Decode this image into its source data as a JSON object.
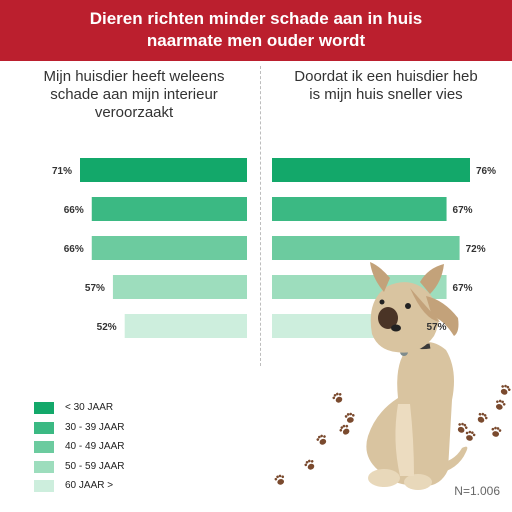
{
  "header": {
    "title_line1": "Dieren richten minder schade aan in huis",
    "title_line2": "naarmate men ouder wordt"
  },
  "chart_data": [
    {
      "type": "bar",
      "title": "Mijn huisdier heeft weleens schade aan mijn interieur veroorzaakt",
      "title_lines": [
        "Mijn huisdier heeft weleens",
        "schade aan mijn interieur",
        "veroorzaakt"
      ],
      "orientation": "horizontal-leftward",
      "categories": [
        "< 30 JAAR",
        "30 - 39 JAAR",
        "40 - 49 JAAR",
        "50 - 59 JAAR",
        "60 JAAR >"
      ],
      "values": [
        71,
        66,
        66,
        57,
        52
      ],
      "value_labels": [
        "71%",
        "66%",
        "66%",
        "57%",
        "52%"
      ]
    },
    {
      "type": "bar",
      "title": "Doordat ik een huisdier heb is mijn huis sneller vies",
      "title_lines": [
        "Doordat ik een huisdier heb",
        "is mijn huis sneller vies"
      ],
      "orientation": "horizontal",
      "categories": [
        "< 30 JAAR",
        "30 - 39 JAAR",
        "40 - 49 JAAR",
        "50 - 59 JAAR",
        "60 JAAR >"
      ],
      "values": [
        76,
        67,
        72,
        67,
        57
      ],
      "value_labels": [
        "76%",
        "67%",
        "72%",
        "67%",
        "57%"
      ]
    }
  ],
  "legend": [
    {
      "label": "< 30 JAAR",
      "color": "#13a86a"
    },
    {
      "label": "30 - 39 JAAR",
      "color": "#3bb983"
    },
    {
      "label": "40 - 49 JAAR",
      "color": "#6ccb9f"
    },
    {
      "label": "50 - 59 JAAR",
      "color": "#9dddbd"
    },
    {
      "label": "60 JAAR >",
      "color": "#cdeedd"
    }
  ],
  "sample_size": "N=1.006",
  "colors": {
    "header_bg": "#bb1f2e",
    "paw": "#7a4a2e",
    "dog_body": "#d9c4a0",
    "dog_ears": "#c3a27a"
  }
}
